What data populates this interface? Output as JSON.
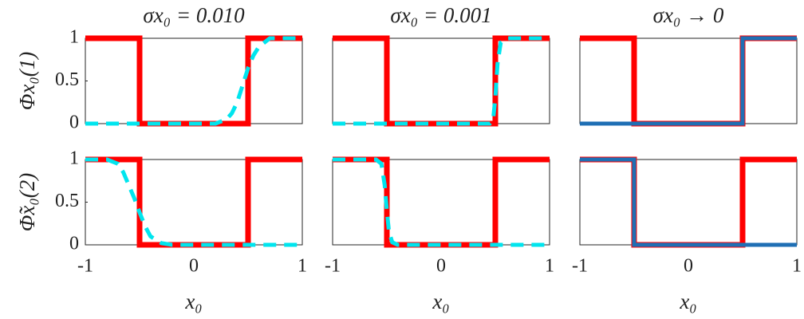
{
  "chart_data": [
    {
      "type": "line",
      "title": "σx₀ = 0.010",
      "ylabel": "Φx₀(1)",
      "xlim": [
        -1,
        1
      ],
      "ylim": [
        0,
        1
      ],
      "yticks": [
        0,
        0.5,
        1
      ],
      "series": [
        {
          "color": "#ff0000",
          "style": "solid",
          "x": [
            -1,
            -0.5,
            -0.5,
            0.5,
            0.5,
            1
          ],
          "values": [
            1,
            1,
            0,
            0,
            1,
            1
          ]
        },
        {
          "color": "#00e5ee",
          "style": "dashed",
          "x": [
            -1,
            0.2,
            0.3,
            0.35,
            0.4,
            0.45,
            0.5,
            0.55,
            0.6,
            0.7,
            1
          ],
          "values": [
            0,
            0,
            0.05,
            0.12,
            0.25,
            0.45,
            0.65,
            0.8,
            0.9,
            1,
            1
          ]
        }
      ]
    },
    {
      "type": "line",
      "title": "σx₀ = 0.001",
      "xlim": [
        -1,
        1
      ],
      "ylim": [
        0,
        1
      ],
      "series": [
        {
          "color": "#ff0000",
          "style": "solid",
          "x": [
            -1,
            -0.5,
            -0.5,
            0.5,
            0.5,
            1
          ],
          "values": [
            1,
            1,
            0,
            0,
            1,
            1
          ]
        },
        {
          "color": "#00e5ee",
          "style": "dashed",
          "x": [
            -1,
            0.45,
            0.48,
            0.5,
            0.52,
            0.55,
            0.6,
            1
          ],
          "values": [
            0,
            0,
            0.05,
            0.3,
            0.7,
            0.95,
            1,
            1
          ]
        }
      ]
    },
    {
      "type": "line",
      "title": "σx₀ → 0",
      "xlim": [
        -1,
        1
      ],
      "ylim": [
        0,
        1
      ],
      "series": [
        {
          "color": "#ff0000",
          "style": "solid",
          "x": [
            -1,
            -0.5,
            -0.5,
            0.5,
            0.5,
            1
          ],
          "values": [
            1,
            1,
            0,
            0,
            1,
            1
          ]
        },
        {
          "color": "#1f6fb4",
          "style": "thin",
          "x": [
            -1,
            0.5,
            0.5,
            1
          ],
          "values": [
            0,
            0,
            1,
            1
          ]
        }
      ]
    },
    {
      "type": "line",
      "ylabel": "Φ̃x₀(2)",
      "xlabel": "x₀",
      "xlim": [
        -1,
        1
      ],
      "ylim": [
        0,
        1
      ],
      "yticks": [
        0,
        0.5,
        1
      ],
      "xticks": [
        -1,
        0,
        1
      ],
      "series": [
        {
          "color": "#ff0000",
          "style": "solid",
          "x": [
            -1,
            -0.5,
            -0.5,
            0.5,
            0.5,
            1
          ],
          "values": [
            1,
            1,
            0,
            0,
            1,
            1
          ]
        },
        {
          "color": "#00e5ee",
          "style": "dashed",
          "x": [
            -1,
            -0.8,
            -0.7,
            -0.65,
            -0.6,
            -0.55,
            -0.5,
            -0.45,
            -0.4,
            -0.3,
            -0.2,
            1
          ],
          "values": [
            1,
            1,
            0.95,
            0.85,
            0.7,
            0.55,
            0.38,
            0.22,
            0.1,
            0.02,
            0,
            0
          ]
        }
      ]
    },
    {
      "type": "line",
      "xlabel": "x₀",
      "xlim": [
        -1,
        1
      ],
      "ylim": [
        0,
        1
      ],
      "xticks": [
        -1,
        0,
        1
      ],
      "series": [
        {
          "color": "#ff0000",
          "style": "solid",
          "x": [
            -1,
            -0.5,
            -0.5,
            0.5,
            0.5,
            1
          ],
          "values": [
            1,
            1,
            0,
            0,
            1,
            1
          ]
        },
        {
          "color": "#00e5ee",
          "style": "dashed",
          "x": [
            -1,
            -0.6,
            -0.55,
            -0.52,
            -0.5,
            -0.48,
            -0.45,
            -0.4,
            1
          ],
          "values": [
            1,
            1,
            0.95,
            0.7,
            0.4,
            0.15,
            0.03,
            0,
            0
          ]
        }
      ]
    },
    {
      "type": "line",
      "xlabel": "x₀",
      "xlim": [
        -1,
        1
      ],
      "ylim": [
        0,
        1
      ],
      "xticks": [
        -1,
        0,
        1
      ],
      "series": [
        {
          "color": "#ff0000",
          "style": "solid",
          "x": [
            -1,
            -0.5,
            -0.5,
            0.5,
            0.5,
            1
          ],
          "values": [
            1,
            1,
            0,
            0,
            1,
            1
          ]
        },
        {
          "color": "#1f6fb4",
          "style": "thin",
          "x": [
            -1,
            -0.5,
            -0.5,
            1
          ],
          "values": [
            1,
            1,
            0,
            0
          ]
        }
      ]
    }
  ]
}
